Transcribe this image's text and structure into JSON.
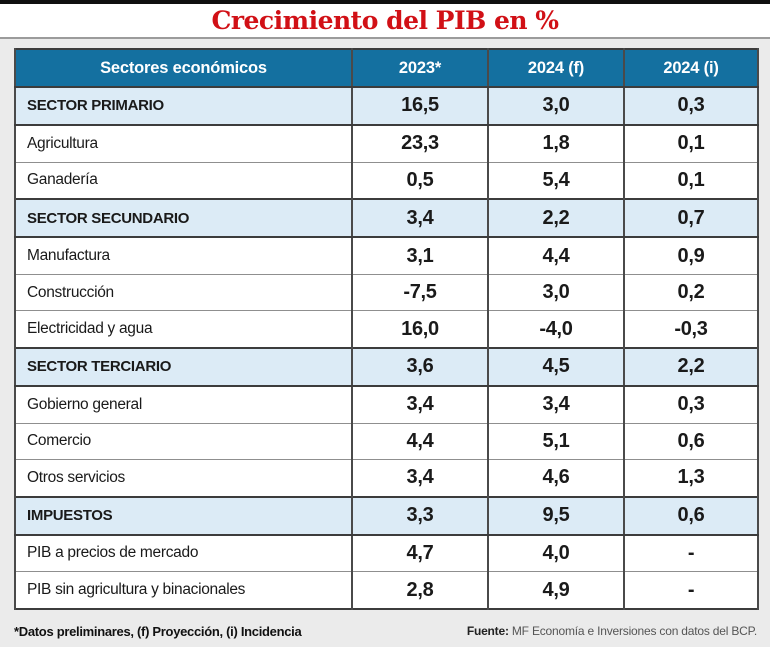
{
  "title": "Crecimiento del PIB en %",
  "chart_data": {
    "type": "table",
    "title": "Crecimiento del PIB en %",
    "columns": [
      "Sectores económicos",
      "2023*",
      "2024 (f)",
      "2024 (i)"
    ],
    "rows": [
      {
        "label": "SECTOR PRIMARIO",
        "style": "section",
        "values": [
          "16,5",
          "3,0",
          "0,3"
        ]
      },
      {
        "label": "Agricultura",
        "style": "item",
        "values": [
          "23,3",
          "1,8",
          "0,1"
        ]
      },
      {
        "label": "Ganadería",
        "style": "item",
        "values": [
          "0,5",
          "5,4",
          "0,1"
        ]
      },
      {
        "label": "SECTOR SECUNDARIO",
        "style": "section",
        "values": [
          "3,4",
          "2,2",
          "0,7"
        ]
      },
      {
        "label": "Manufactura",
        "style": "item",
        "values": [
          "3,1",
          "4,4",
          "0,9"
        ]
      },
      {
        "label": "Construcción",
        "style": "item",
        "values": [
          "-7,5",
          "3,0",
          "0,2"
        ]
      },
      {
        "label": "Electricidad y agua",
        "style": "item",
        "values": [
          "16,0",
          "-4,0",
          "-0,3"
        ]
      },
      {
        "label": "SECTOR TERCIARIO",
        "style": "section",
        "values": [
          "3,6",
          "4,5",
          "2,2"
        ]
      },
      {
        "label": "Gobierno general",
        "style": "item",
        "values": [
          "3,4",
          "3,4",
          "0,3"
        ]
      },
      {
        "label": "Comercio",
        "style": "item",
        "values": [
          "4,4",
          "5,1",
          "0,6"
        ]
      },
      {
        "label": "Otros servicios",
        "style": "item",
        "values": [
          "3,4",
          "4,6",
          "1,3"
        ]
      },
      {
        "label": "IMPUESTOS",
        "style": "section",
        "values": [
          "3,3",
          "9,5",
          "0,6"
        ]
      },
      {
        "label": "PIB a precios de mercado",
        "style": "item",
        "values": [
          "4,7",
          "4,0",
          "-"
        ]
      },
      {
        "label": "PIB sin agricultura y binacionales",
        "style": "item",
        "values": [
          "2,8",
          "4,9",
          "-"
        ]
      }
    ]
  },
  "footer": {
    "note": "*Datos preliminares, (f) Proyección, (i) Incidencia",
    "source_label": "Fuente:",
    "source_text": " MF Economía e Inversiones con datos del BCP."
  },
  "colors": {
    "header_blue": "#1470a0",
    "section_blue": "#dcebf6",
    "title_red": "#d11016",
    "page_background": "#ebebeb",
    "border_dark": "#3c3c3c",
    "border_light": "#8f8f8f"
  }
}
